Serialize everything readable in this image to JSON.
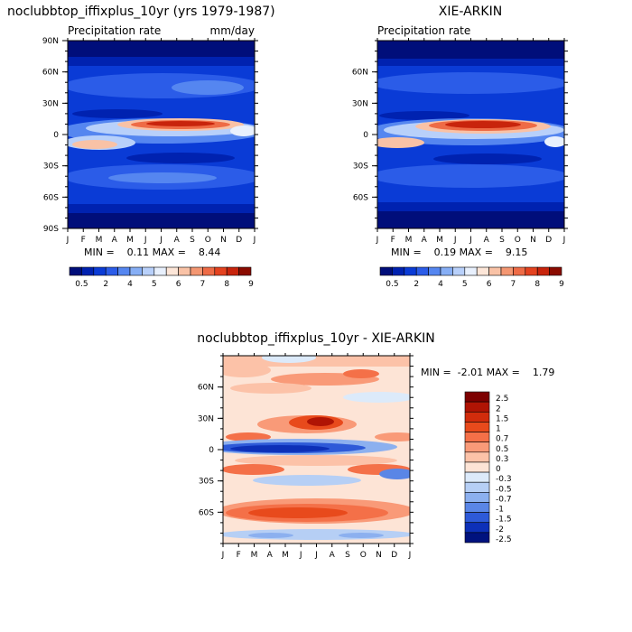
{
  "panels": {
    "model": {
      "title": "noclubbtop_iffixplus_10yr (yrs 1979-1987)",
      "subtitle": "Precipitation rate",
      "units": "mm/day",
      "min_max": "MIN =    0.11 MAX =    8.44"
    },
    "obs": {
      "title": "XIE-ARKIN",
      "subtitle": "Precipitation rate",
      "min_max": "MIN =    0.19 MAX =    9.15"
    },
    "diff": {
      "title": "noclubbtop_iffixplus_10yr - XIE-ARKIN",
      "min_max": "MIN =  -2.01 MAX =    1.79"
    }
  },
  "months": [
    "J",
    "F",
    "M",
    "A",
    "M",
    "J",
    "J",
    "A",
    "S",
    "O",
    "N",
    "D",
    "J"
  ],
  "lat_labels_full": [
    "90N",
    "60N",
    "30N",
    "0",
    "30S",
    "60S",
    "90S"
  ],
  "lat_labels_inner": [
    "60N",
    "30N",
    "0",
    "30S",
    "60S"
  ],
  "precip_colorbar": {
    "tick_labels": [
      "0.5",
      "2",
      "4",
      "5",
      "6",
      "7",
      "8",
      "9"
    ],
    "colors": [
      "#000e7a",
      "#0022b0",
      "#0a3bd6",
      "#2b5ce8",
      "#5586f0",
      "#86aef5",
      "#b8d0fa",
      "#e8f0fd",
      "#fde6d8",
      "#f9c2a6",
      "#f49772",
      "#ee6b46",
      "#e4421f",
      "#c8240c",
      "#8a0b00"
    ]
  },
  "diff_colorbar": {
    "labels": [
      "2.5",
      "2",
      "1.5",
      "1",
      "0.7",
      "0.5",
      "0.3",
      "0",
      "-0.3",
      "-0.5",
      "-0.7",
      "-1",
      "-1.5",
      "-2",
      "-2.5"
    ],
    "colors": [
      "#7d0000",
      "#b01404",
      "#d12c0c",
      "#e84a1c",
      "#f47048",
      "#f99a78",
      "#fcc2a8",
      "#fde4d6",
      "#dceafa",
      "#b6cff5",
      "#8cb0ef",
      "#5a86e6",
      "#2e5ad8",
      "#0d30b8",
      "#00127e"
    ]
  },
  "chart_data": [
    {
      "type": "heatmap",
      "title": "noclubbtop_iffixplus_10yr (yrs 1979-1987)",
      "subtitle": "Precipitation rate",
      "units": "mm/day",
      "x": [
        "J",
        "F",
        "M",
        "A",
        "M",
        "J",
        "J",
        "A",
        "S",
        "O",
        "N",
        "D",
        "J"
      ],
      "y_range": [
        -90,
        90
      ],
      "min": 0.11,
      "max": 8.44
    },
    {
      "type": "heatmap",
      "title": "XIE-ARKIN",
      "subtitle": "Precipitation rate",
      "x": [
        "J",
        "F",
        "M",
        "A",
        "M",
        "J",
        "J",
        "A",
        "S",
        "O",
        "N",
        "D",
        "J"
      ],
      "y_range": [
        -90,
        90
      ],
      "min": 0.19,
      "max": 9.15
    },
    {
      "type": "heatmap",
      "title": "noclubbtop_iffixplus_10yr - XIE-ARKIN",
      "x": [
        "J",
        "F",
        "M",
        "A",
        "M",
        "J",
        "J",
        "A",
        "S",
        "O",
        "N",
        "D",
        "J"
      ],
      "y_range": [
        -90,
        90
      ],
      "min": -2.01,
      "max": 1.79,
      "levels": [
        -2.5,
        -2,
        -1.5,
        -1,
        -0.7,
        -0.5,
        -0.3,
        0,
        0.3,
        0.5,
        0.7,
        1,
        1.5,
        2,
        2.5
      ]
    }
  ]
}
